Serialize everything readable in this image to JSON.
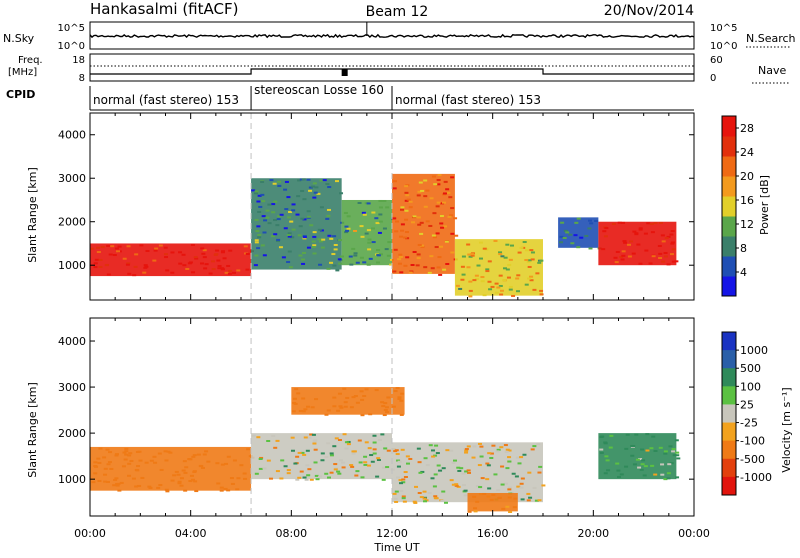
{
  "header": {
    "station": "Hankasalmi (fitACF)",
    "beam": "Beam 12",
    "date": "20/Nov/2014"
  },
  "noise_panel": {
    "left_label": "N.Sky",
    "right_label": "N.Search",
    "left_ticks": [
      "10^5",
      "10^0"
    ],
    "right_ticks": [
      "10^5",
      "10^0"
    ]
  },
  "freq_panel": {
    "left_label_line1": "Freq.",
    "left_label_line2": "[MHz]",
    "right_label": "Nave",
    "left_ticks": [
      "18",
      "8"
    ],
    "right_ticks": [
      "60",
      "0"
    ]
  },
  "cpid": {
    "label": "CPID",
    "segments": [
      {
        "text": "normal (fast stereo) 153",
        "start_h": 0.0,
        "end_h": 6.4
      },
      {
        "text": "stereoscan Losse 160",
        "start_h": 6.4,
        "end_h": 12.0
      },
      {
        "text": "normal (fast stereo) 153",
        "start_h": 12.0,
        "end_h": 24.0
      }
    ]
  },
  "x_axis": {
    "label": "Time UT",
    "ticks": [
      "00:00",
      "04:00",
      "08:00",
      "12:00",
      "16:00",
      "20:00",
      "00:00"
    ]
  },
  "colors": {
    "power_scale": [
      "#1515e6",
      "#1f4fb4",
      "#3a7f6a",
      "#5aa64a",
      "#e2cf2a",
      "#f39a1e",
      "#ef6a14",
      "#e2300c",
      "#e6140d"
    ],
    "velocity_scale": [
      "#1a33c2",
      "#2a5fa8",
      "#2f8a5a",
      "#5bc142",
      "#c8c6bc",
      "#f2a21e",
      "#ef7a16",
      "#e3400d",
      "#e2140d"
    ],
    "ground_scatter": "#c8c6bc"
  },
  "chart_data": [
    {
      "type": "heatmap",
      "title": "",
      "ylabel": "Slant Range [km]",
      "xlabel": "",
      "xlim": [
        0,
        24
      ],
      "ylim": [
        200,
        4500
      ],
      "yticks": [
        "1000",
        "2000",
        "3000",
        "4000"
      ],
      "colorbar": {
        "label": "Power [dB]",
        "ticks": [
          "4",
          "8",
          "12",
          "16",
          "20",
          "24",
          "28"
        ],
        "range": [
          0,
          30
        ]
      },
      "regions": [
        {
          "t": [
            0.0,
            6.4
          ],
          "r": [
            750,
            1500
          ],
          "value": 27
        },
        {
          "t": [
            6.4,
            10.0
          ],
          "r": [
            900,
            3000
          ],
          "value": 8
        },
        {
          "t": [
            10.0,
            12.0
          ],
          "r": [
            1000,
            2500
          ],
          "value": 10
        },
        {
          "t": [
            12.0,
            14.5
          ],
          "r": [
            800,
            3100
          ],
          "value": 22
        },
        {
          "t": [
            14.5,
            18.0
          ],
          "r": [
            300,
            1600
          ],
          "value": 16
        },
        {
          "t": [
            18.6,
            20.2
          ],
          "r": [
            1400,
            2100
          ],
          "value": 6
        },
        {
          "t": [
            20.2,
            23.3
          ],
          "r": [
            1000,
            2000
          ],
          "value": 28
        }
      ]
    },
    {
      "type": "heatmap",
      "title": "",
      "ylabel": "Slant Range [km]",
      "xlabel": "Time UT",
      "xlim": [
        0,
        24
      ],
      "ylim": [
        200,
        4500
      ],
      "yticks": [
        "1000",
        "2000",
        "3000",
        "4000"
      ],
      "colorbar": {
        "label": "Velocity [m s⁻¹]",
        "ticks": [
          "1000",
          "500",
          "100",
          "25",
          "-25",
          "-100",
          "-500",
          "-1000"
        ],
        "range": [
          -1000,
          1000
        ]
      },
      "regions": [
        {
          "t": [
            0.0,
            6.4
          ],
          "r": [
            750,
            1700
          ],
          "value": -300
        },
        {
          "t": [
            6.4,
            12.0
          ],
          "r": [
            1000,
            2000
          ],
          "value": 0
        },
        {
          "t": [
            8.0,
            12.5
          ],
          "r": [
            2400,
            3000
          ],
          "value": -300
        },
        {
          "t": [
            12.0,
            18.0
          ],
          "r": [
            500,
            1800
          ],
          "value": 0
        },
        {
          "t": [
            15.0,
            17.0
          ],
          "r": [
            300,
            700
          ],
          "value": -200
        },
        {
          "t": [
            20.2,
            23.3
          ],
          "r": [
            1000,
            2000
          ],
          "value": 100
        }
      ]
    }
  ]
}
